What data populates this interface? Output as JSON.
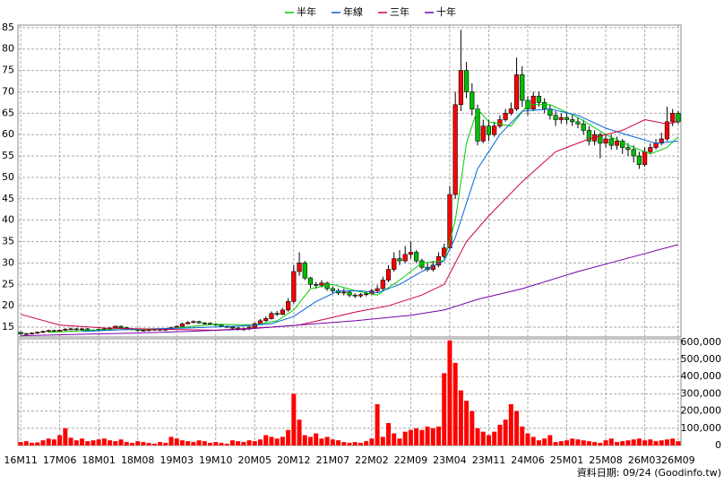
{
  "chart_data": {
    "type": "candlestick",
    "categories": [
      "16M11",
      null,
      null,
      null,
      null,
      null,
      null,
      "17M06",
      null,
      null,
      null,
      null,
      null,
      null,
      "18M01",
      null,
      null,
      null,
      null,
      null,
      null,
      "18M08",
      null,
      null,
      null,
      null,
      null,
      null,
      "19M03",
      null,
      null,
      null,
      null,
      null,
      null,
      "19M10",
      null,
      null,
      null,
      null,
      null,
      null,
      "20M05",
      null,
      null,
      null,
      null,
      null,
      null,
      "20M12",
      null,
      null,
      null,
      null,
      null,
      null,
      "21M07",
      null,
      null,
      null,
      null,
      null,
      null,
      "22M02",
      null,
      null,
      null,
      null,
      null,
      null,
      "22M09",
      null,
      null,
      null,
      null,
      null,
      null,
      "23M04",
      null,
      null,
      null,
      null,
      null,
      null,
      "23M11",
      null,
      null,
      null,
      null,
      null,
      null,
      "24M06",
      null,
      null,
      null,
      null,
      null,
      null,
      "25M01",
      null,
      null,
      null,
      null,
      null,
      null,
      "25M08",
      null,
      null,
      null,
      null,
      null,
      null,
      "26M03",
      null,
      null,
      null,
      null,
      null,
      "26M09"
    ],
    "open": [
      13.8,
      13.4,
      13.5,
      13.6,
      13.8,
      14.0,
      14.2,
      14.0,
      14.3,
      14.5,
      14.6,
      14.4,
      14.6,
      14.3,
      14.2,
      14.5,
      14.6,
      14.8,
      15.2,
      14.9,
      14.6,
      14.5,
      14.2,
      14.3,
      14.4,
      14.5,
      14.3,
      14.6,
      14.9,
      15.2,
      15.8,
      16.1,
      16.3,
      16.0,
      15.9,
      15.7,
      15.5,
      15.2,
      15.0,
      14.8,
      14.5,
      14.6,
      15.0,
      15.8,
      16.5,
      17.0,
      18.2,
      18.0,
      19.0,
      21.0,
      28.0,
      30.0,
      26.5,
      25.0,
      24.8,
      25.3,
      24.0,
      23.5,
      23.0,
      23.2,
      22.5,
      22.3,
      22.6,
      22.8,
      23.5,
      24.0,
      26.0,
      28.5,
      31.0,
      30.5,
      32.0,
      32.5,
      30.5,
      29.0,
      28.5,
      29.5,
      31.5,
      33.5,
      46.0,
      67.0,
      75.0,
      70.0,
      66.0,
      58.5,
      62.0,
      60.0,
      62.0,
      63.5,
      65.0,
      66.0,
      74.0,
      68.0,
      66.0,
      69.0,
      67.5,
      66.0,
      64.5,
      63.5,
      64.0,
      63.5,
      63.0,
      62.5,
      61.0,
      58.5,
      60.0,
      58.0,
      59.0,
      57.5,
      58.5,
      57.0,
      56.5,
      55.0,
      53.0,
      56.0,
      57.0,
      58.0,
      59.0,
      63.0,
      65.0
    ],
    "high": [
      14.0,
      13.7,
      13.8,
      14.0,
      14.2,
      14.4,
      14.4,
      14.5,
      14.8,
      14.9,
      14.8,
      14.8,
      14.8,
      14.5,
      14.7,
      14.8,
      15.0,
      15.4,
      15.4,
      15.1,
      14.8,
      14.7,
      14.5,
      14.6,
      14.7,
      14.7,
      14.8,
      15.1,
      15.4,
      16.0,
      16.4,
      16.6,
      16.5,
      16.2,
      16.1,
      15.9,
      15.7,
      15.4,
      15.2,
      15.0,
      14.9,
      15.3,
      16.1,
      16.9,
      17.5,
      18.7,
      18.8,
      19.5,
      21.8,
      29.5,
      32.5,
      30.5,
      26.8,
      25.6,
      26.0,
      25.6,
      24.5,
      24.0,
      24.0,
      23.6,
      22.9,
      23.0,
      23.4,
      24.0,
      24.8,
      26.8,
      29.5,
      32.5,
      33.0,
      34.0,
      35.0,
      33.0,
      31.0,
      30.0,
      30.5,
      32.5,
      34.5,
      48.0,
      70.0,
      84.5,
      77.0,
      72.0,
      67.0,
      63.5,
      63.5,
      63.0,
      64.5,
      66.0,
      67.5,
      78.0,
      76.0,
      69.0,
      70.0,
      70.0,
      68.5,
      67.0,
      65.5,
      65.0,
      65.0,
      64.5,
      64.0,
      63.5,
      62.0,
      61.0,
      60.5,
      60.0,
      60.0,
      59.5,
      59.0,
      58.0,
      57.5,
      56.0,
      57.0,
      58.0,
      59.0,
      60.5,
      66.5,
      66.0,
      65.5
    ],
    "low": [
      13.2,
      13.2,
      13.3,
      13.4,
      13.6,
      13.8,
      13.8,
      13.8,
      14.1,
      14.3,
      14.2,
      14.2,
      14.1,
      14.0,
      14.0,
      14.3,
      14.4,
      14.6,
      14.7,
      14.3,
      14.3,
      14.0,
      14.0,
      14.1,
      14.2,
      14.1,
      14.1,
      14.4,
      14.7,
      15.0,
      15.6,
      15.9,
      15.8,
      15.6,
      15.5,
      15.3,
      15.0,
      14.8,
      14.6,
      14.2,
      14.2,
      14.3,
      14.8,
      15.6,
      16.2,
      16.8,
      17.6,
      17.8,
      18.6,
      20.5,
      27.0,
      26.0,
      24.2,
      24.0,
      24.3,
      23.5,
      23.0,
      22.5,
      22.4,
      22.0,
      21.8,
      21.9,
      22.2,
      22.5,
      23.0,
      23.6,
      25.5,
      28.0,
      29.5,
      30.0,
      31.0,
      30.0,
      28.5,
      28.0,
      28.0,
      29.0,
      31.0,
      33.0,
      45.0,
      65.5,
      68.5,
      64.5,
      57.5,
      58.0,
      58.5,
      59.5,
      61.5,
      63.0,
      64.5,
      65.5,
      66.5,
      64.5,
      65.5,
      66.5,
      65.0,
      63.5,
      62.0,
      62.5,
      62.5,
      62.0,
      61.5,
      60.0,
      57.5,
      57.5,
      54.5,
      57.0,
      56.5,
      56.5,
      55.5,
      55.0,
      53.5,
      52.0,
      52.5,
      55.5,
      56.5,
      57.5,
      58.5,
      62.0,
      62.5
    ],
    "close": [
      13.4,
      13.5,
      13.6,
      13.8,
      14.0,
      14.2,
      14.0,
      14.3,
      14.5,
      14.6,
      14.4,
      14.6,
      14.3,
      14.2,
      14.5,
      14.6,
      14.8,
      15.2,
      14.9,
      14.6,
      14.5,
      14.2,
      14.3,
      14.4,
      14.5,
      14.3,
      14.6,
      14.9,
      15.2,
      15.8,
      16.1,
      16.3,
      16.0,
      15.9,
      15.7,
      15.5,
      15.2,
      15.0,
      14.8,
      14.5,
      14.6,
      15.0,
      15.8,
      16.5,
      17.0,
      18.2,
      18.0,
      19.0,
      21.0,
      28.0,
      30.0,
      26.5,
      25.0,
      24.8,
      25.3,
      24.0,
      23.5,
      23.0,
      23.2,
      22.5,
      22.3,
      22.6,
      22.8,
      23.5,
      24.0,
      26.0,
      28.5,
      31.0,
      30.5,
      32.0,
      32.5,
      30.5,
      29.0,
      28.5,
      29.5,
      31.5,
      33.5,
      46.0,
      67.0,
      75.0,
      70.0,
      66.0,
      58.5,
      62.0,
      60.0,
      62.0,
      63.5,
      65.0,
      66.0,
      74.0,
      68.0,
      66.0,
      69.0,
      67.5,
      66.0,
      64.5,
      63.5,
      64.0,
      63.5,
      63.0,
      62.5,
      61.0,
      58.5,
      60.0,
      58.0,
      59.0,
      57.5,
      58.5,
      57.0,
      56.5,
      55.0,
      53.0,
      56.0,
      57.0,
      58.0,
      59.0,
      63.0,
      65.0,
      63.0
    ],
    "up_color": "#ff0000",
    "down_color": "#00c000",
    "volume": [
      20000,
      25000,
      15000,
      18000,
      30000,
      40000,
      35000,
      60000,
      100000,
      45000,
      30000,
      40000,
      25000,
      30000,
      35000,
      40000,
      30000,
      25000,
      35000,
      20000,
      15000,
      25000,
      20000,
      15000,
      10000,
      20000,
      15000,
      50000,
      40000,
      30000,
      25000,
      20000,
      30000,
      25000,
      15000,
      20000,
      15000,
      10000,
      30000,
      25000,
      20000,
      30000,
      25000,
      35000,
      60000,
      50000,
      40000,
      50000,
      90000,
      300000,
      150000,
      60000,
      50000,
      70000,
      40000,
      50000,
      35000,
      30000,
      20000,
      15000,
      20000,
      15000,
      25000,
      40000,
      240000,
      50000,
      130000,
      70000,
      40000,
      80000,
      90000,
      100000,
      90000,
      110000,
      100000,
      110000,
      420000,
      610000,
      480000,
      320000,
      260000,
      200000,
      100000,
      80000,
      60000,
      80000,
      120000,
      150000,
      240000,
      200000,
      110000,
      70000,
      50000,
      30000,
      40000,
      60000,
      20000,
      25000,
      30000,
      40000,
      35000,
      30000,
      25000,
      20000,
      15000,
      30000,
      40000,
      20000,
      25000,
      30000,
      35000,
      40000,
      30000,
      35000,
      25000,
      30000,
      35000,
      40000,
      25000
    ],
    "volume_color": "#ff0000",
    "ylim": [
      12.7,
      85.6
    ],
    "yticks": [
      15,
      20,
      25,
      30,
      35,
      40,
      45,
      50,
      55,
      60,
      65,
      70,
      75,
      80,
      85
    ],
    "y2lim": [
      0,
      620000
    ],
    "y2ticks": [
      0,
      {
        "value": 100000,
        "label": "100,000"
      },
      {
        "value": 200000,
        "label": "200,000"
      },
      {
        "value": 300000,
        "label": "300,000"
      },
      {
        "value": 400000,
        "label": "400,000"
      },
      {
        "value": 500000,
        "label": "500,000"
      },
      {
        "value": 600000,
        "label": "600,000"
      }
    ],
    "grid": true,
    "series": [
      {
        "name": "半年",
        "color": "#00cc00",
        "x": [
          5,
          15,
          25,
          35,
          42,
          46,
          49,
          52,
          56,
          60,
          64,
          68,
          72,
          76,
          78,
          80,
          82,
          84,
          88,
          91,
          95,
          100,
          105,
          110,
          113,
          116,
          118
        ],
        "values": [
          13.8,
          14.4,
          14.5,
          15.7,
          15.5,
          16.5,
          19,
          24,
          25,
          23.5,
          22.5,
          26,
          30,
          30.5,
          40,
          58,
          66,
          63,
          62,
          67,
          67,
          64,
          60,
          57,
          55.5,
          57,
          59.5
        ]
      },
      {
        "name": "年線",
        "color": "#0066dd",
        "x": [
          11,
          20,
          30,
          40,
          45,
          49,
          53,
          57,
          61,
          64,
          68,
          72,
          76,
          78,
          82,
          86,
          90,
          95,
          100,
          105,
          110,
          114,
          118
        ],
        "values": [
          14,
          14.5,
          14.8,
          15.3,
          15.8,
          17.5,
          21,
          23.5,
          23.5,
          23,
          25,
          28,
          30.5,
          36,
          52,
          60,
          65.5,
          66,
          64.5,
          61.5,
          59.5,
          58,
          58.5
        ]
      },
      {
        "name": "三年",
        "color": "#cc0044",
        "x": [
          0,
          7,
          15,
          25,
          35,
          45,
          50,
          55,
          60,
          66,
          72,
          76,
          80,
          84,
          90,
          96,
          102,
          108,
          112,
          116,
          118
        ],
        "values": [
          18,
          15.5,
          14.8,
          14.5,
          14.3,
          15,
          15.5,
          17,
          18.5,
          20,
          22.5,
          25,
          35,
          41,
          49,
          56,
          59,
          61,
          63.5,
          62.5,
          63
        ]
      },
      {
        "name": "十年",
        "color": "#7700aa",
        "x": [
          0,
          10,
          20,
          30,
          40,
          50,
          60,
          70,
          76,
          82,
          90,
          100,
          110,
          118
        ],
        "values": [
          13,
          13.3,
          13.6,
          14,
          14.5,
          15.5,
          16.5,
          17.8,
          19,
          21.5,
          24,
          28,
          31.5,
          34.3
        ]
      }
    ],
    "footer": "資料日期: 09/24 (Goodinfo.tw)"
  }
}
